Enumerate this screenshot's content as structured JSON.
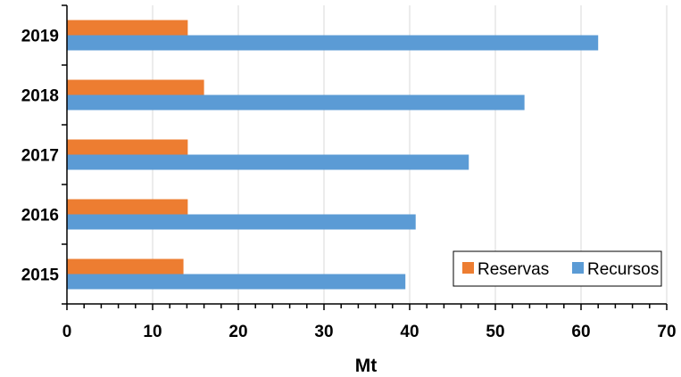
{
  "chart_data": {
    "type": "bar",
    "orientation": "horizontal",
    "categories": [
      "2015",
      "2016",
      "2017",
      "2018",
      "2019"
    ],
    "series": [
      {
        "name": "Reservas",
        "color": "#ED7D31",
        "values": [
          13.6,
          14.1,
          14.1,
          16.0,
          14.1
        ]
      },
      {
        "name": "Recursos",
        "color": "#5B9BD5",
        "values": [
          39.5,
          40.7,
          46.9,
          53.4,
          62.0
        ]
      }
    ],
    "xlabel": "Mt",
    "ylabel": "",
    "xlim": [
      0,
      70
    ],
    "xticks": [
      0,
      10,
      20,
      30,
      40,
      50,
      60,
      70
    ],
    "xticks_minor_step": 2,
    "grid": "vertical",
    "grid_color": "#D9D9D9",
    "legend_position": "bottom-right"
  }
}
